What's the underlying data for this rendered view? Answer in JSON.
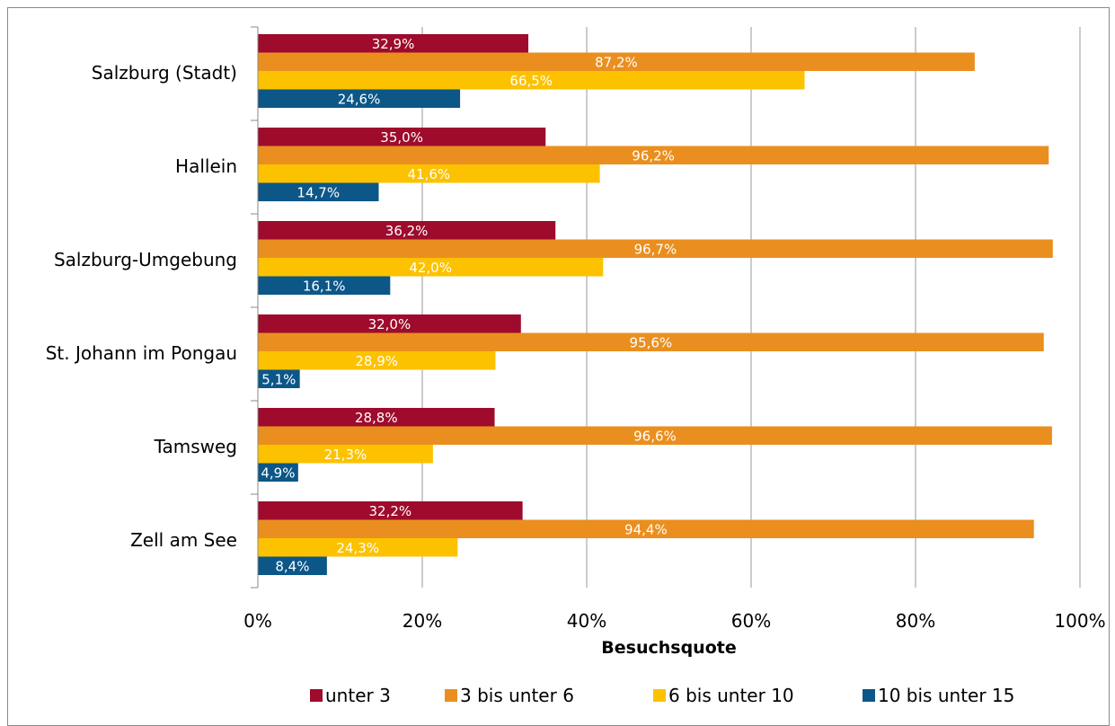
{
  "chart_data": {
    "type": "bar",
    "orientation": "horizontal",
    "categories": [
      "Salzburg (Stadt)",
      "Hallein",
      "Salzburg-Umgebung",
      "St. Johann im Pongau",
      "Tamsweg",
      "Zell am See"
    ],
    "series": [
      {
        "name": "unter 3",
        "color": "#9e0b2c",
        "values": [
          32.9,
          35.0,
          36.2,
          32.0,
          28.8,
          32.2
        ],
        "labels": [
          "32,9%",
          "35,0%",
          "36,2%",
          "32,0%",
          "28,8%",
          "32,2%"
        ]
      },
      {
        "name": "3 bis unter 6",
        "color": "#ea8f1f",
        "values": [
          87.2,
          96.2,
          96.7,
          95.6,
          96.6,
          94.4
        ],
        "labels": [
          "87,2%",
          "96,2%",
          "96,7%",
          "95,6%",
          "96,6%",
          "94,4%"
        ]
      },
      {
        "name": "6 bis unter 10",
        "color": "#fcc200",
        "values": [
          66.5,
          41.6,
          42.0,
          28.9,
          21.3,
          24.3
        ],
        "labels": [
          "66,5%",
          "41,6%",
          "42,0%",
          "28,9%",
          "21,3%",
          "24,3%"
        ]
      },
      {
        "name": "10 bis unter 15",
        "color": "#0c5788",
        "values": [
          24.6,
          14.7,
          16.1,
          5.1,
          4.9,
          8.4
        ],
        "labels": [
          "24,6%",
          "14,7%",
          "16,1%",
          "5,1%",
          "4,9%",
          "8,4%"
        ]
      }
    ],
    "xlim": [
      0,
      100
    ],
    "x_ticks": [
      0,
      20,
      40,
      60,
      80,
      100
    ],
    "x_tick_labels": [
      "0%",
      "20%",
      "40%",
      "60%",
      "80%",
      "100%"
    ],
    "xlabel": "Besuchsquote",
    "grid": true,
    "legend": "bottom"
  }
}
